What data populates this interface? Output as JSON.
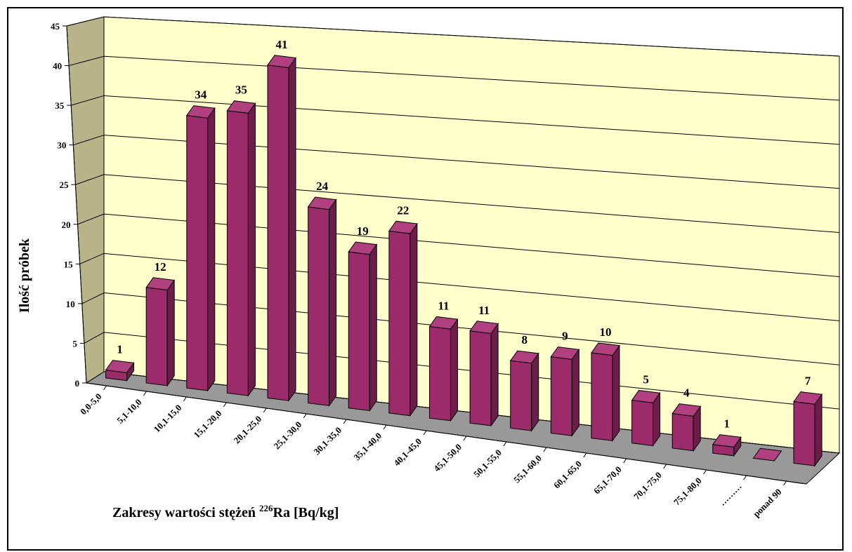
{
  "chart_data": {
    "type": "bar",
    "title": "",
    "xlabel_prefix": "Zakresy wartości stężeń ",
    "xlabel_sup": "226",
    "xlabel_suffix": "Ra [Bq/kg]",
    "ylabel": "Ilość próbek",
    "ylim": [
      0,
      45
    ],
    "yticks": [
      "0",
      "5",
      "10",
      "15",
      "20",
      "25",
      "30",
      "35",
      "40",
      "45"
    ],
    "grid": true,
    "categories": [
      "0,0-5,0",
      "5,1-10,0",
      "10,1-15,0",
      "15,1-20,0",
      "20,1-25,0",
      "25,1-30,0",
      "30,1-35,0",
      "35,1-40,0",
      "40,1-45,0",
      "45,1-50,0",
      "50,1-55,0",
      "55,1-60,0",
      "60,1-65,0",
      "65,1-70,0",
      "70,1-75,0",
      "75,1-80,0",
      "………",
      "ponad 90"
    ],
    "values": [
      1,
      12,
      34,
      35,
      41,
      24,
      19,
      22,
      11,
      11,
      8,
      9,
      10,
      5,
      4,
      1,
      0,
      7
    ],
    "value_labels": [
      "1",
      "12",
      "34",
      "35",
      "41",
      "24",
      "19",
      "22",
      "11",
      "11",
      "8",
      "9",
      "10",
      "5",
      "4",
      "1",
      "",
      "7"
    ],
    "colors": {
      "bar_front": "#9B2B6B",
      "bar_side": "#6E1C4A",
      "bar_top": "#B04080",
      "back_wall": "#FFFFCC",
      "side_wall": "#B8B48A",
      "floor": "#999999"
    }
  }
}
